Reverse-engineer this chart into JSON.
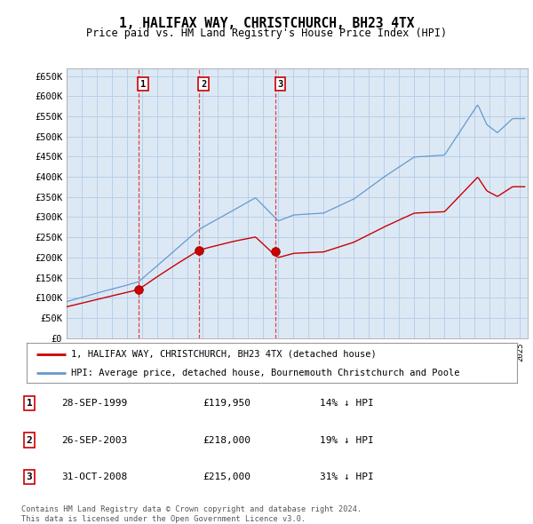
{
  "title": "1, HALIFAX WAY, CHRISTCHURCH, BH23 4TX",
  "subtitle": "Price paid vs. HM Land Registry's House Price Index (HPI)",
  "plot_bg_color": "#dce9f5",
  "grid_color": "#b8cfe8",
  "hpi_color": "#6699cc",
  "price_color": "#cc0000",
  "dashed_line_color": "#dd4444",
  "sales": [
    {
      "label": "1",
      "date_x": 1999.75,
      "price": 119950,
      "pct": "14%",
      "date_str": "28-SEP-1999"
    },
    {
      "label": "2",
      "date_x": 2003.75,
      "price": 218000,
      "pct": "19%",
      "date_str": "26-SEP-2003"
    },
    {
      "label": "3",
      "date_x": 2008.833,
      "price": 215000,
      "pct": "31%",
      "date_str": "31-OCT-2008"
    }
  ],
  "legend_labels": [
    "1, HALIFAX WAY, CHRISTCHURCH, BH23 4TX (detached house)",
    "HPI: Average price, detached house, Bournemouth Christchurch and Poole"
  ],
  "footer_lines": [
    "Contains HM Land Registry data © Crown copyright and database right 2024.",
    "This data is licensed under the Open Government Licence v3.0."
  ],
  "xlim": [
    1995.0,
    2025.5
  ],
  "ylim": [
    0,
    670000
  ],
  "yticks": [
    0,
    50000,
    100000,
    150000,
    200000,
    250000,
    300000,
    350000,
    400000,
    450000,
    500000,
    550000,
    600000,
    650000
  ],
  "ytick_labels": [
    "£0",
    "£50K",
    "£100K",
    "£150K",
    "£200K",
    "£250K",
    "£300K",
    "£350K",
    "£400K",
    "£450K",
    "£500K",
    "£550K",
    "£600K",
    "£650K"
  ],
  "xticks": [
    1995,
    1996,
    1997,
    1998,
    1999,
    2000,
    2001,
    2002,
    2003,
    2004,
    2005,
    2006,
    2007,
    2008,
    2009,
    2010,
    2011,
    2012,
    2013,
    2014,
    2015,
    2016,
    2017,
    2018,
    2019,
    2020,
    2021,
    2022,
    2023,
    2024,
    2025
  ]
}
